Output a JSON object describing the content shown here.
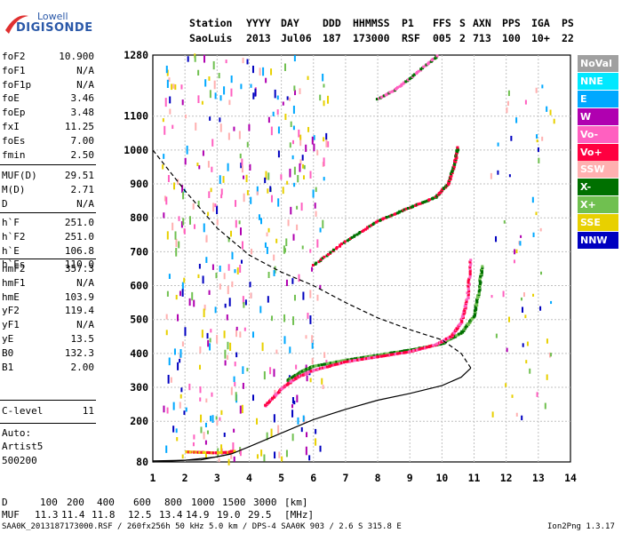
{
  "logo": {
    "top": "Lowell",
    "main": "DIGISONDE"
  },
  "header": {
    "row1": [
      "Station",
      "YYYY",
      "DAY",
      "DDD",
      "HHMMSS",
      "P1",
      "FFS",
      "S",
      "AXN",
      "PPS",
      "IGA",
      "PS"
    ],
    "row2": [
      "SaoLuis",
      "2013",
      "Jul06",
      "187",
      "173000",
      "RSF",
      "005",
      "2",
      "713",
      "100",
      "10+",
      "22"
    ]
  },
  "params_group1": [
    {
      "name": "foF2",
      "value": "10.900"
    },
    {
      "name": "foF1",
      "value": "N/A"
    },
    {
      "name": "foF1p",
      "value": "N/A"
    },
    {
      "name": "foE",
      "value": "3.46"
    },
    {
      "name": "foEp",
      "value": "3.48"
    },
    {
      "name": "fxI",
      "value": "11.25"
    },
    {
      "name": "foEs",
      "value": "7.00"
    },
    {
      "name": "fmin",
      "value": "2.50"
    }
  ],
  "params_group2": [
    {
      "name": "MUF(D)",
      "value": "29.51"
    },
    {
      "name": "M(D)",
      "value": "2.71"
    },
    {
      "name": "D",
      "value": "N/A"
    }
  ],
  "params_group3": [
    {
      "name": "h`F",
      "value": "251.0"
    },
    {
      "name": "h`F2",
      "value": "251.0"
    },
    {
      "name": "h`E",
      "value": "106.8"
    },
    {
      "name": "h`Es",
      "value": "110.0"
    }
  ],
  "params_group4": [
    {
      "name": "hmF2",
      "value": "357.3"
    },
    {
      "name": "hmF1",
      "value": "N/A"
    },
    {
      "name": "hmE",
      "value": "103.9"
    },
    {
      "name": "yF2",
      "value": "119.4"
    },
    {
      "name": "yF1",
      "value": "N/A"
    },
    {
      "name": "yE",
      "value": "13.5"
    },
    {
      "name": "B0",
      "value": "132.3"
    },
    {
      "name": "B1",
      "value": "2.00"
    }
  ],
  "params_group5": [
    {
      "name": "C-level",
      "value": "11"
    }
  ],
  "autoscale": {
    "line1": "Auto:",
    "line2": "Artist5",
    "line3": "500200"
  },
  "legend": [
    {
      "label": "NoVal",
      "bg": "#a0a0a0",
      "fg": "#ffffff"
    },
    {
      "label": "NNE",
      "bg": "#00e8ff",
      "fg": "#ffffff"
    },
    {
      "label": "E",
      "bg": "#00a8ff",
      "fg": "#ffffff"
    },
    {
      "label": "W",
      "bg": "#b000b0",
      "fg": "#ffffff"
    },
    {
      "label": "Vo-",
      "bg": "#ff60c0",
      "fg": "#ffffff"
    },
    {
      "label": "Vo+",
      "bg": "#ff0040",
      "fg": "#ffffff"
    },
    {
      "label": "SSW",
      "bg": "#ffb0b0",
      "fg": "#ffffff"
    },
    {
      "label": "X-",
      "bg": "#007000",
      "fg": "#ffffff"
    },
    {
      "label": "X+",
      "bg": "#70c050",
      "fg": "#ffffff"
    },
    {
      "label": "SSE",
      "bg": "#e8d000",
      "fg": "#ffffff"
    },
    {
      "label": "NNW",
      "bg": "#0000c0",
      "fg": "#ffffff"
    }
  ],
  "muf_table": {
    "d_label": "D",
    "d_values": [
      "100",
      "200",
      "400",
      "600",
      "800",
      "1000",
      "1500",
      "3000"
    ],
    "d_unit": "[km]",
    "muf_label": "MUF",
    "muf_values": [
      "11.3",
      "11.4",
      "11.8",
      "12.5",
      "13.4",
      "14.9",
      "19.0",
      "29.5"
    ],
    "muf_unit": "[MHz]"
  },
  "footer": {
    "left": "SAA0K_2013187173000.RSF / 260fx256h 50 kHz 5.0 km / DPS-4 SAA0K 903 / 2.6 S 315.8 E",
    "right": "Ion2Png 1.3.17"
  },
  "chart_data": {
    "type": "scatter",
    "xlim": [
      1,
      14
    ],
    "ylim": [
      80,
      1280
    ],
    "x_ticks": [
      "1",
      "2",
      "3",
      "4",
      "5",
      "6",
      "7",
      "8",
      "9",
      "10",
      "11",
      "12",
      "13",
      "14"
    ],
    "y_ticks": [
      "80",
      "200",
      "300",
      "400",
      "500",
      "600",
      "700",
      "800",
      "900",
      "1000",
      "1100",
      "1280"
    ],
    "grid": true,
    "legend_position": "right",
    "colors": {
      "X_minus": "#007000",
      "X_plus": "#70c050",
      "Vo_minus": "#ff60c0",
      "Vo_plus": "#ff0040",
      "W": "#b000b0",
      "E": "#00a8ff",
      "NNW": "#0000c0",
      "SSE": "#e8d000",
      "SSW": "#ffb0b0",
      "NoVal": "#a0a0a0"
    },
    "trace_F2_O": {
      "x": [
        4.5,
        5.0,
        5.5,
        6.0,
        7.0,
        8.0,
        9.0,
        9.8,
        10.3,
        10.6,
        10.8,
        10.9
      ],
      "y": [
        245,
        295,
        330,
        350,
        375,
        390,
        405,
        425,
        450,
        490,
        560,
        680
      ]
    },
    "trace_F2_X": {
      "x": [
        5.2,
        5.6,
        6.0,
        7.0,
        8.0,
        9.0,
        10.0,
        10.6,
        11.0,
        11.15,
        11.25
      ],
      "y": [
        320,
        345,
        362,
        380,
        395,
        410,
        428,
        460,
        510,
        580,
        660
      ]
    },
    "trace_F2_multi": {
      "x": [
        6.0,
        7.0,
        8.0,
        9.0,
        9.8,
        10.2,
        10.4,
        10.5
      ],
      "y": [
        660,
        730,
        790,
        830,
        860,
        900,
        960,
        1010
      ]
    },
    "trace_F2_third": {
      "x": [
        8.0,
        8.5,
        9.0,
        9.5,
        9.9
      ],
      "y": [
        1150,
        1175,
        1210,
        1250,
        1280
      ]
    },
    "trace_E": {
      "x": [
        2.0,
        2.5,
        3.0,
        3.4,
        3.5
      ],
      "y": [
        110,
        108,
        107,
        108,
        112
      ]
    },
    "profile_real": {
      "x": [
        1.0,
        2.0,
        3.0,
        3.46,
        4.0,
        5.0,
        6.0,
        7.0,
        8.0,
        9.0,
        10.0,
        10.6,
        10.9
      ],
      "y": [
        80,
        85,
        95,
        104,
        125,
        165,
        205,
        235,
        262,
        282,
        305,
        330,
        357
      ]
    },
    "profile_model": {
      "x": [
        1.0,
        2.0,
        3.0,
        4.0,
        5.0,
        6.0,
        7.0,
        8.0,
        9.0,
        10.0,
        10.6,
        10.9
      ],
      "y": [
        1000,
        880,
        770,
        690,
        640,
        600,
        550,
        505,
        470,
        440,
        400,
        357
      ]
    },
    "profile_base": {
      "x": [
        1.0,
        2.5,
        3.46
      ],
      "y": [
        83,
        86,
        104
      ]
    }
  }
}
